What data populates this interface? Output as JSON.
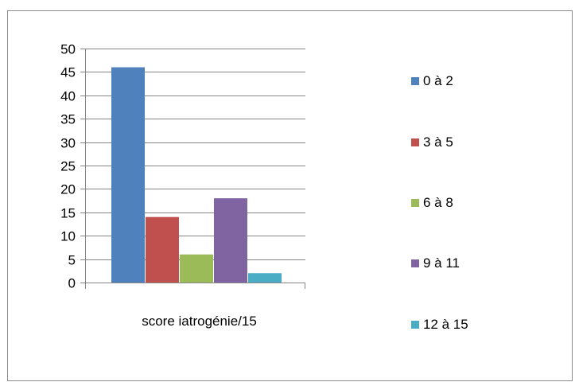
{
  "chart_data": {
    "type": "bar",
    "categories": [
      "score iatrogénie/15"
    ],
    "series": [
      {
        "name": "0 à 2",
        "values": [
          46
        ],
        "color": "#4f81bd"
      },
      {
        "name": "3 à 5",
        "values": [
          14
        ],
        "color": "#c0504d"
      },
      {
        "name": "6 à 8",
        "values": [
          6
        ],
        "color": "#9bbb59"
      },
      {
        "name": "9 à 11",
        "values": [
          18
        ],
        "color": "#8064a2"
      },
      {
        "name": "12 à 15",
        "values": [
          2
        ],
        "color": "#4bacc6"
      }
    ],
    "title": "",
    "xlabel": "",
    "ylabel": "",
    "ylim": [
      0,
      50
    ],
    "yticks": [
      0,
      5,
      10,
      15,
      20,
      25,
      30,
      35,
      40,
      45,
      50
    ],
    "grid": true,
    "legend": "right"
  }
}
